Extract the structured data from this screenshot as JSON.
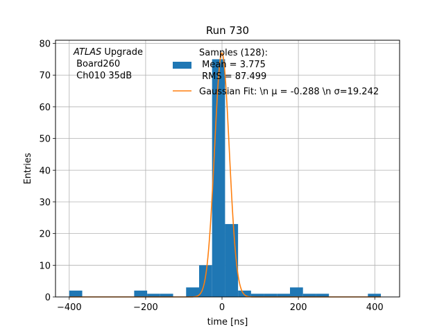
{
  "chart_data": {
    "type": "bar",
    "title": "Run 730",
    "xlabel": "time [ns]",
    "ylabel": "Entries",
    "xlim": [
      -436,
      465
    ],
    "ylim": [
      0,
      81
    ],
    "xticks": [
      -400,
      -200,
      0,
      200,
      400
    ],
    "yticks": [
      0,
      10,
      20,
      30,
      40,
      50,
      60,
      70,
      80
    ],
    "xtick_labels": [
      "−400",
      "−200",
      "0",
      "200",
      "400"
    ],
    "ytick_labels": [
      "0",
      "10",
      "20",
      "30",
      "40",
      "50",
      "60",
      "70",
      "80"
    ],
    "grid": true,
    "legend_placement": "top-center",
    "bar_color": "#1f77b4",
    "line_color": "#ff7f0e",
    "annotation": {
      "italic": "ATLAS",
      "line1_rest": " Upgrade",
      "line2": " Board260",
      "line3": " Ch010 35dB"
    },
    "histogram": {
      "name_lines": [
        "Samples (128):",
        " Mean = 3.775",
        " RMS = 87.499"
      ],
      "bins": [
        {
          "x0": -400,
          "x1": -366,
          "count": 2
        },
        {
          "x0": -366,
          "x1": -332,
          "count": 0
        },
        {
          "x0": -332,
          "x1": -298,
          "count": 0
        },
        {
          "x0": -298,
          "x1": -264,
          "count": 0
        },
        {
          "x0": -264,
          "x1": -230,
          "count": 0
        },
        {
          "x0": -230,
          "x1": -196,
          "count": 2
        },
        {
          "x0": -196,
          "x1": -162,
          "count": 1
        },
        {
          "x0": -162,
          "x1": -128,
          "count": 1
        },
        {
          "x0": -128,
          "x1": -94,
          "count": 0
        },
        {
          "x0": -94,
          "x1": -60,
          "count": 3
        },
        {
          "x0": -60,
          "x1": -26,
          "count": 10
        },
        {
          "x0": -26,
          "x1": 8,
          "count": 75
        },
        {
          "x0": 8,
          "x1": 42,
          "count": 23
        },
        {
          "x0": 42,
          "x1": 76,
          "count": 2
        },
        {
          "x0": 76,
          "x1": 110,
          "count": 1
        },
        {
          "x0": 110,
          "x1": 144,
          "count": 1
        },
        {
          "x0": 144,
          "x1": 178,
          "count": 1
        },
        {
          "x0": 178,
          "x1": 212,
          "count": 3
        },
        {
          "x0": 212,
          "x1": 246,
          "count": 1
        },
        {
          "x0": 246,
          "x1": 280,
          "count": 1
        },
        {
          "x0": 280,
          "x1": 314,
          "count": 0
        },
        {
          "x0": 314,
          "x1": 348,
          "count": 0
        },
        {
          "x0": 348,
          "x1": 382,
          "count": 0
        },
        {
          "x0": 382,
          "x1": 416,
          "count": 1
        }
      ]
    },
    "fit": {
      "name": "Gaussian Fit: \\n μ = -0.288 \\n σ=19.242",
      "amplitude": 77,
      "mu": -0.288,
      "sigma": 19.242,
      "x_range": [
        -400,
        416
      ]
    }
  }
}
